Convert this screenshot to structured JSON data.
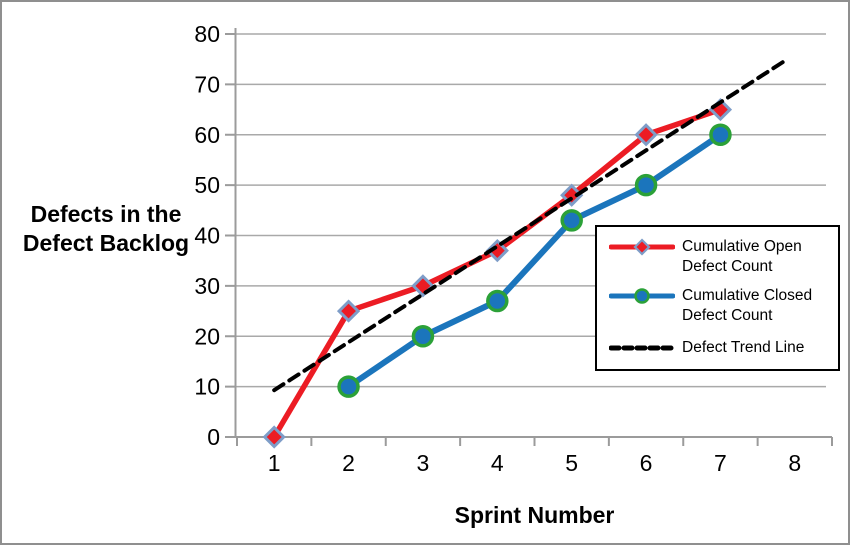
{
  "frame": {
    "background": "#FFFFFF",
    "border_color": "#8F8F8F"
  },
  "chart_data": {
    "type": "line",
    "title": "",
    "xlabel": "Sprint Number",
    "ylabel": "Defects in the Defect Backlog",
    "x_ticks": [
      "1",
      "2",
      "3",
      "4",
      "5",
      "6",
      "7",
      "8"
    ],
    "y_ticks": [
      0,
      10,
      20,
      30,
      40,
      50,
      60,
      70,
      80
    ],
    "ylim": [
      0,
      80
    ],
    "grid": "horizontal-only",
    "legend_position": "center-right",
    "axis_color": "#9B9B9B",
    "grid_color": "#A9A9A9",
    "text_color": "#000000",
    "series": [
      {
        "name": "Cumulative Open Defect Count",
        "color": "#EC1C24",
        "line_width": 5.5,
        "dash": "",
        "marker": "diamond",
        "marker_fill": "#EC1C24",
        "marker_stroke": "#7E9DC8",
        "x": [
          1,
          2,
          3,
          4,
          5,
          6,
          7
        ],
        "values": [
          0,
          25,
          30,
          37,
          48,
          60,
          65
        ]
      },
      {
        "name": "Cumulative Closed Defect Count",
        "color": "#1B75BC",
        "line_width": 6,
        "dash": "",
        "marker": "circle",
        "marker_fill": "#1B75BC",
        "marker_stroke": "#2BA138",
        "x": [
          2,
          3,
          4,
          5,
          6,
          7
        ],
        "values": [
          10,
          20,
          27,
          43,
          50,
          60
        ]
      },
      {
        "name": "Defect Trend Line",
        "color": "#000000",
        "line_width": 4,
        "dash": "11 7",
        "marker": "none",
        "x": [
          1,
          7.9
        ],
        "values": [
          9.3,
          75
        ]
      }
    ]
  }
}
